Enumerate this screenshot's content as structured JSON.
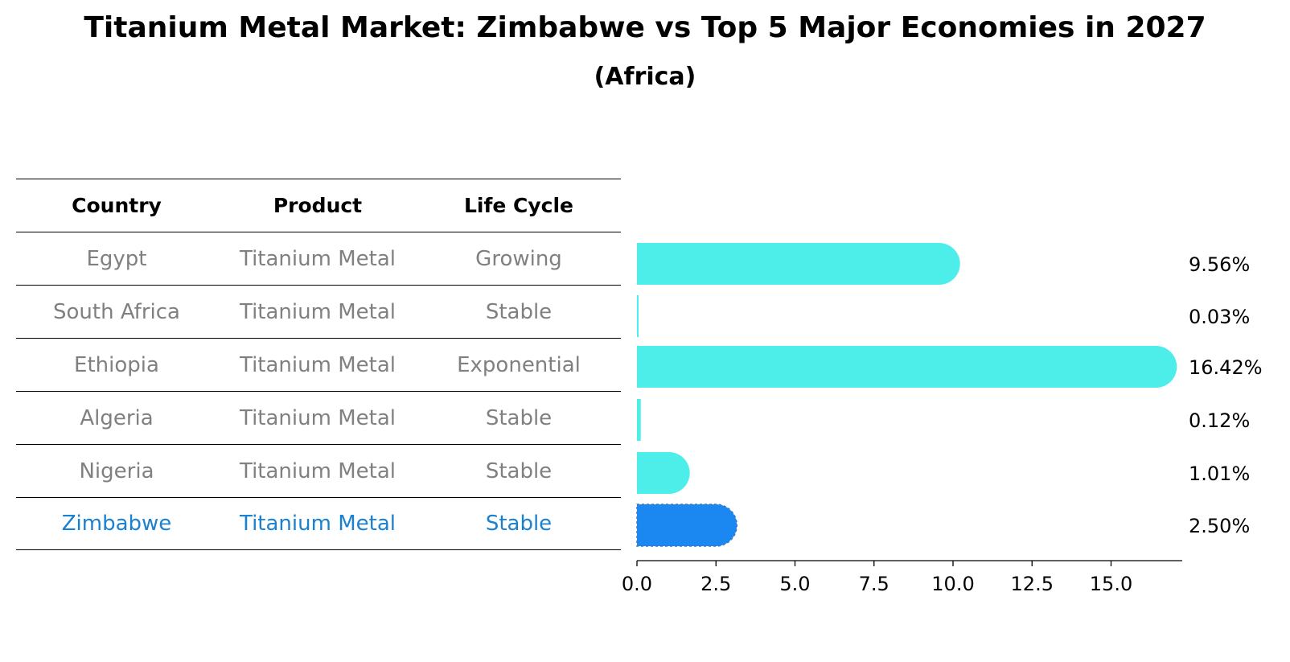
{
  "title": "Titanium Metal Market: Zimbabwe vs Top 5 Major Economies in 2027",
  "subtitle": "(Africa)",
  "table": {
    "headers": [
      "Country",
      "Product",
      "Life Cycle"
    ],
    "rows": [
      [
        "Egypt",
        "Titanium Metal",
        "Growing"
      ],
      [
        "South Africa",
        "Titanium Metal",
        "Stable"
      ],
      [
        "Ethiopia",
        "Titanium Metal",
        "Exponential"
      ],
      [
        "Algeria",
        "Titanium Metal",
        "Stable"
      ],
      [
        "Nigeria",
        "Titanium Metal",
        "Stable"
      ],
      [
        "Zimbabwe",
        "Titanium Metal",
        "Stable"
      ]
    ]
  },
  "colors": {
    "bar": "#4deeea",
    "highlight_bar": "#1a88f0",
    "highlight_text": "#1a80d0",
    "muted_text": "#808080"
  },
  "chart_data": {
    "type": "bar",
    "orientation": "horizontal",
    "categories": [
      "Egypt",
      "South Africa",
      "Ethiopia",
      "Algeria",
      "Nigeria",
      "Zimbabwe"
    ],
    "values": [
      9.56,
      0.03,
      16.42,
      0.12,
      1.01,
      2.5
    ],
    "value_labels": [
      "9.56%",
      "0.03%",
      "16.42%",
      "0.12%",
      "1.01%",
      "2.50%"
    ],
    "highlight": "Zimbabwe",
    "xlim": [
      0,
      17.2
    ],
    "xticks": [
      0,
      2.5,
      5,
      7.5,
      10,
      12.5,
      15
    ],
    "xtick_labels": [
      "0.0",
      "2.5",
      "5.0",
      "7.5",
      "10.0",
      "12.5",
      "15.0"
    ]
  }
}
